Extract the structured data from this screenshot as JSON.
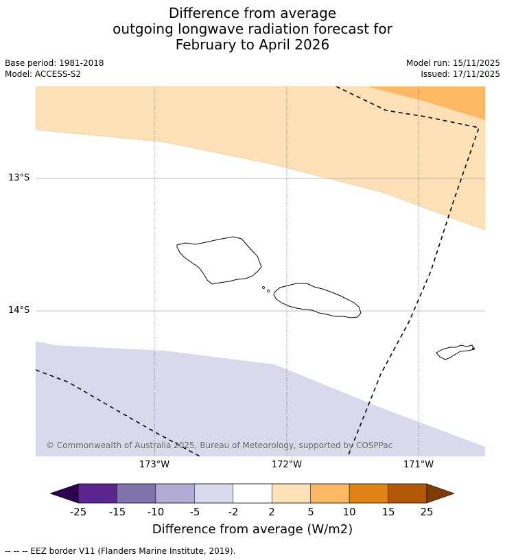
{
  "title": {
    "line1": "Difference from average",
    "line2": "outgoing longwave radiation forecast for",
    "line3": "February to April 2026"
  },
  "meta": {
    "base_period": "Base period: 1981-2018",
    "model": "Model: ACCESS-S2",
    "model_run": "Model run: 15/11/2025",
    "issued": "Issued: 17/11/2025"
  },
  "map": {
    "lat_labels": [
      "13°S",
      "14°S"
    ],
    "lon_labels": [
      "173°W",
      "172°W",
      "171°W"
    ],
    "copyright": "© Commonwealth of Australia 2025, Bureau of Meteorology, supported by COSPPac"
  },
  "colorbar": {
    "ticks": [
      "-25",
      "-15",
      "-10",
      "-5",
      "-2",
      "2",
      "5",
      "10",
      "15",
      "25"
    ],
    "colors": {
      "under": "#2d004b",
      "bins": [
        "#5b2590",
        "#8073ac",
        "#b2abd2",
        "#d8daeb",
        "#ffffff",
        "#fee0b6",
        "#fdb863",
        "#e08214",
        "#b35806"
      ],
      "over": "#7f3b08"
    },
    "label": "Difference from average (W/m2)"
  },
  "footer": "--  --  -- EEZ border V11 (Flanders Marine Institute, 2019)."
}
